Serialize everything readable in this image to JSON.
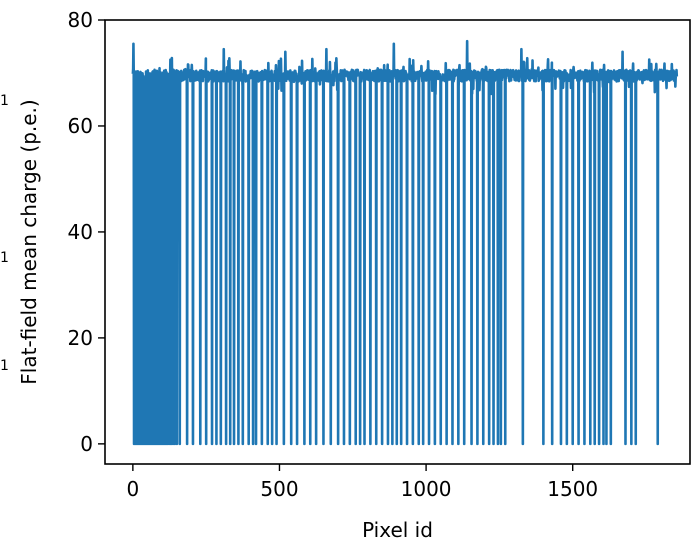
{
  "chart_data": {
    "type": "line",
    "title": "",
    "xlabel": "Pixel id",
    "ylabel": "Flat-field mean charge (p.e.)",
    "xlim": [
      -95,
      1900
    ],
    "ylim": [
      -3.8,
      80
    ],
    "xticks": [
      0,
      500,
      1000,
      1500
    ],
    "yticks": [
      0,
      20,
      40,
      60,
      80
    ],
    "grid": false,
    "legend": "none",
    "side_marks": [
      "1",
      "1",
      "1"
    ],
    "series": [
      {
        "color": "#1f77b4",
        "baseline_mean": 69.5,
        "baseline_range": [
          66,
          73
        ],
        "x_max": 1855,
        "spike_peaks": [
          {
            "x": 2,
            "y": 75.5
          },
          {
            "x": 310,
            "y": 74.5
          },
          {
            "x": 520,
            "y": 74.0
          },
          {
            "x": 660,
            "y": 74.5
          },
          {
            "x": 890,
            "y": 75.5
          },
          {
            "x": 1140,
            "y": 76.0
          },
          {
            "x": 1325,
            "y": 74.5
          },
          {
            "x": 1460,
            "y": 74.0
          },
          {
            "x": 1670,
            "y": 74.0
          }
        ],
        "dead_pixels": [
          4,
          9,
          14,
          18,
          22,
          27,
          31,
          35,
          40,
          44,
          48,
          52,
          57,
          62,
          66,
          70,
          75,
          79,
          84,
          88,
          92,
          97,
          101,
          106,
          110,
          115,
          120,
          126,
          131,
          137,
          143,
          150,
          160,
          185,
          205,
          230,
          250,
          270,
          285,
          300,
          318,
          332,
          345,
          360,
          375,
          395,
          410,
          420,
          440,
          460,
          475,
          490,
          515,
          540,
          560,
          585,
          605,
          625,
          650,
          675,
          700,
          720,
          740,
          760,
          775,
          790,
          810,
          830,
          850,
          870,
          885,
          900,
          915,
          935,
          955,
          975,
          990,
          1010,
          1030,
          1050,
          1070,
          1090,
          1110,
          1130,
          1155,
          1175,
          1195,
          1215,
          1230,
          1245,
          1255,
          1270,
          1330,
          1400,
          1430,
          1460,
          1480,
          1500,
          1520,
          1540,
          1560,
          1575,
          1590,
          1605,
          1615,
          1630,
          1680,
          1700,
          1715,
          1790
        ]
      }
    ]
  }
}
